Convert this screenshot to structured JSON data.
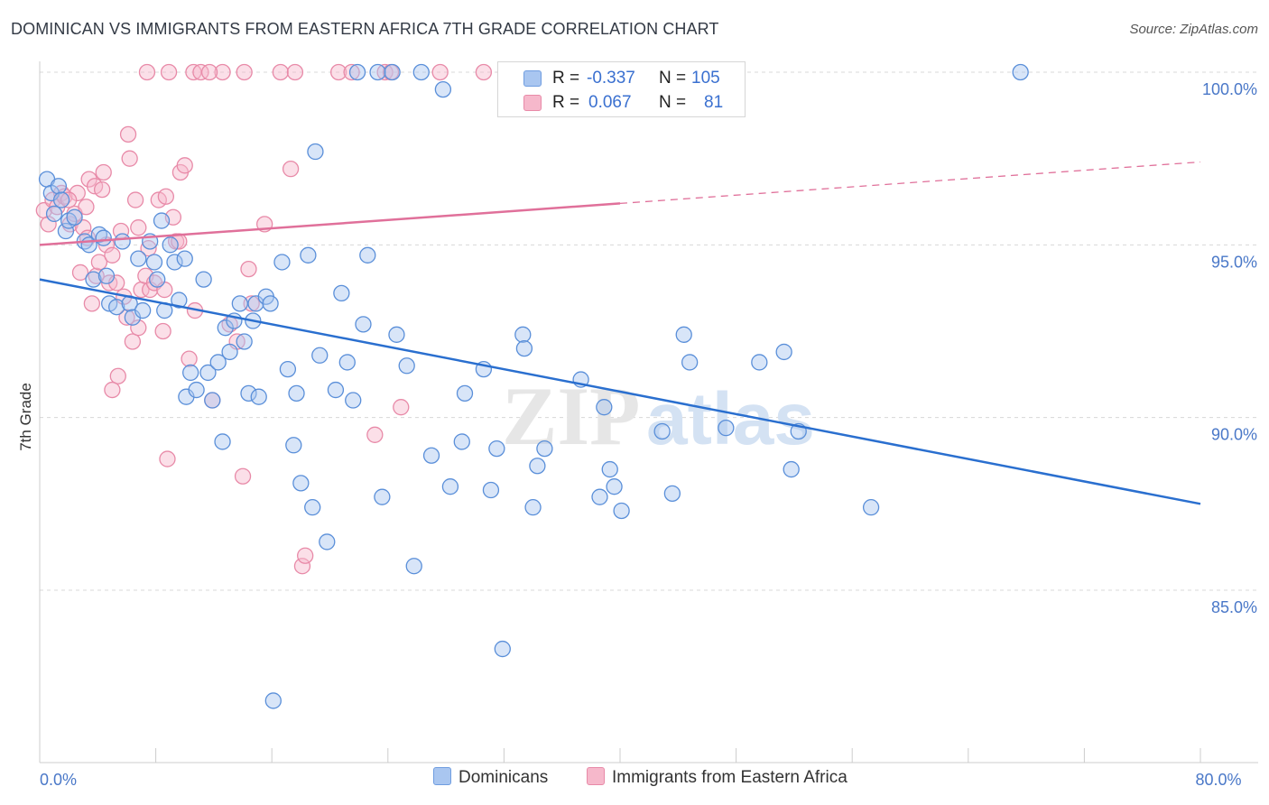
{
  "title": "DOMINICAN VS IMMIGRANTS FROM EASTERN AFRICA 7TH GRADE CORRELATION CHART",
  "source": "Source: ZipAtlas.com",
  "watermark": {
    "zip": "ZIP",
    "atlas": "atlas"
  },
  "legend": {
    "rows": [
      {
        "r_label": "R =",
        "r_value": "-0.337",
        "n_label": "N =",
        "n_value": "105",
        "color": "#a9c6f0",
        "border": "#6f9de0"
      },
      {
        "r_label": "R =",
        "r_value": "0.067",
        "n_label": "N =",
        "n_value": "81",
        "color": "#f6b8cb",
        "border": "#e88aa8"
      }
    ]
  },
  "bottom_legend": {
    "dominicans": "Dominicans",
    "eastern_africa": "Immigrants from Eastern Africa"
  },
  "colors": {
    "blue_fill": "#a9c6f0",
    "blue_stroke": "#5a8fd9",
    "blue_line": "#2a6fcf",
    "pink_fill": "#f6b8cb",
    "pink_stroke": "#e88aa8",
    "pink_line": "#e0709a",
    "grid": "#d8d8d8",
    "tick_text": "#4a78c8"
  },
  "chart_data": {
    "type": "scatter",
    "title": "DOMINICAN VS IMMIGRANTS FROM EASTERN AFRICA 7TH GRADE CORRELATION CHART",
    "xlabel": "",
    "ylabel": "7th Grade",
    "xlim": [
      0,
      80
    ],
    "ylim": [
      80.5,
      100.5
    ],
    "x_ticks": [
      0,
      8,
      16,
      24,
      32,
      40,
      48,
      56,
      64,
      72,
      80
    ],
    "x_tick_labels": {
      "0": "0.0%",
      "80": "80.0%"
    },
    "y_ticks": [
      85,
      90,
      95,
      100
    ],
    "y_tick_labels": [
      "85.0%",
      "90.0%",
      "95.0%",
      "100.0%"
    ],
    "grid": true,
    "series": [
      {
        "name": "Dominicans",
        "trend": {
          "x": [
            0,
            80
          ],
          "y": [
            94.0,
            87.5
          ],
          "dashed_from": null
        },
        "points": [
          [
            0.5,
            96.9
          ],
          [
            0.8,
            96.5
          ],
          [
            1.0,
            95.9
          ],
          [
            1.3,
            96.7
          ],
          [
            1.5,
            96.3
          ],
          [
            1.8,
            95.4
          ],
          [
            2.0,
            95.7
          ],
          [
            2.4,
            95.8
          ],
          [
            3.1,
            95.1
          ],
          [
            3.4,
            95.0
          ],
          [
            3.7,
            94.0
          ],
          [
            4.1,
            95.3
          ],
          [
            4.4,
            95.2
          ],
          [
            4.6,
            94.1
          ],
          [
            4.8,
            93.3
          ],
          [
            5.3,
            93.2
          ],
          [
            5.7,
            95.1
          ],
          [
            6.2,
            93.3
          ],
          [
            6.4,
            92.9
          ],
          [
            6.8,
            94.6
          ],
          [
            7.1,
            93.1
          ],
          [
            7.6,
            95.1
          ],
          [
            7.9,
            94.5
          ],
          [
            8.1,
            94.0
          ],
          [
            8.4,
            95.7
          ],
          [
            8.6,
            93.1
          ],
          [
            9.0,
            95.0
          ],
          [
            9.3,
            94.5
          ],
          [
            9.6,
            93.4
          ],
          [
            10.0,
            94.6
          ],
          [
            10.1,
            90.6
          ],
          [
            10.4,
            91.3
          ],
          [
            10.8,
            90.8
          ],
          [
            11.3,
            94.0
          ],
          [
            11.6,
            91.3
          ],
          [
            11.9,
            90.5
          ],
          [
            12.3,
            91.6
          ],
          [
            12.6,
            89.3
          ],
          [
            12.8,
            92.6
          ],
          [
            13.1,
            91.9
          ],
          [
            13.4,
            92.8
          ],
          [
            13.8,
            93.3
          ],
          [
            14.1,
            92.2
          ],
          [
            14.4,
            90.7
          ],
          [
            14.7,
            92.8
          ],
          [
            14.9,
            93.3
          ],
          [
            15.1,
            90.6
          ],
          [
            15.6,
            93.5
          ],
          [
            15.9,
            93.3
          ],
          [
            16.1,
            81.8
          ],
          [
            16.7,
            94.5
          ],
          [
            17.1,
            91.4
          ],
          [
            17.5,
            89.2
          ],
          [
            17.7,
            90.7
          ],
          [
            18.0,
            88.1
          ],
          [
            18.5,
            94.7
          ],
          [
            18.8,
            87.4
          ],
          [
            19.0,
            97.7
          ],
          [
            19.3,
            91.8
          ],
          [
            19.8,
            86.4
          ],
          [
            20.4,
            90.8
          ],
          [
            20.8,
            93.6
          ],
          [
            21.2,
            91.6
          ],
          [
            21.6,
            90.5
          ],
          [
            21.9,
            100.0
          ],
          [
            22.3,
            92.7
          ],
          [
            22.6,
            94.7
          ],
          [
            23.3,
            100.0
          ],
          [
            23.6,
            87.7
          ],
          [
            24.3,
            100.0
          ],
          [
            24.6,
            92.4
          ],
          [
            25.3,
            91.5
          ],
          [
            25.8,
            85.7
          ],
          [
            26.3,
            100.0
          ],
          [
            27.0,
            88.9
          ],
          [
            27.8,
            99.5
          ],
          [
            28.3,
            88.0
          ],
          [
            29.1,
            89.3
          ],
          [
            29.3,
            90.7
          ],
          [
            30.6,
            91.4
          ],
          [
            31.1,
            87.9
          ],
          [
            31.5,
            89.1
          ],
          [
            32.3,
            100.0
          ],
          [
            33.3,
            92.4
          ],
          [
            33.4,
            92.0
          ],
          [
            34.0,
            87.4
          ],
          [
            34.3,
            88.6
          ],
          [
            34.8,
            89.1
          ],
          [
            35.1,
            100.0
          ],
          [
            37.3,
            91.1
          ],
          [
            38.6,
            87.7
          ],
          [
            38.9,
            90.3
          ],
          [
            39.3,
            88.5
          ],
          [
            39.6,
            88.0
          ],
          [
            40.1,
            87.3
          ],
          [
            42.9,
            89.6
          ],
          [
            43.6,
            87.8
          ],
          [
            44.4,
            92.4
          ],
          [
            44.8,
            91.6
          ],
          [
            47.3,
            89.7
          ],
          [
            49.6,
            91.6
          ],
          [
            51.3,
            91.9
          ],
          [
            51.8,
            88.5
          ],
          [
            52.3,
            89.6
          ],
          [
            57.3,
            87.4
          ],
          [
            67.6,
            100.0
          ],
          [
            31.9,
            83.3
          ]
        ]
      },
      {
        "name": "Immigrants from Eastern Africa",
        "trend": {
          "x": [
            0,
            80
          ],
          "y": [
            95.0,
            97.4
          ],
          "dashed_from": 40
        },
        "points": [
          [
            0.3,
            96.0
          ],
          [
            0.6,
            95.6
          ],
          [
            0.9,
            96.3
          ],
          [
            1.2,
            96.1
          ],
          [
            1.5,
            96.5
          ],
          [
            1.7,
            96.4
          ],
          [
            2.1,
            95.6
          ],
          [
            2.4,
            95.9
          ],
          [
            2.6,
            96.5
          ],
          [
            2.8,
            94.2
          ],
          [
            3.0,
            95.5
          ],
          [
            3.2,
            96.1
          ],
          [
            3.3,
            95.2
          ],
          [
            3.4,
            96.9
          ],
          [
            3.8,
            96.7
          ],
          [
            3.9,
            94.1
          ],
          [
            4.1,
            94.5
          ],
          [
            4.3,
            96.6
          ],
          [
            4.4,
            97.1
          ],
          [
            4.6,
            95.0
          ],
          [
            4.8,
            93.9
          ],
          [
            5.0,
            94.7
          ],
          [
            5.3,
            93.9
          ],
          [
            5.4,
            91.2
          ],
          [
            5.6,
            95.4
          ],
          [
            5.8,
            93.5
          ],
          [
            6.0,
            92.9
          ],
          [
            6.1,
            98.2
          ],
          [
            6.4,
            92.2
          ],
          [
            6.6,
            96.3
          ],
          [
            6.8,
            95.5
          ],
          [
            7.0,
            93.7
          ],
          [
            7.3,
            94.1
          ],
          [
            7.6,
            93.7
          ],
          [
            7.9,
            93.9
          ],
          [
            8.2,
            96.3
          ],
          [
            8.5,
            92.5
          ],
          [
            8.6,
            93.7
          ],
          [
            8.7,
            96.4
          ],
          [
            8.8,
            88.8
          ],
          [
            8.9,
            100.0
          ],
          [
            9.2,
            95.8
          ],
          [
            9.4,
            95.1
          ],
          [
            9.7,
            97.1
          ],
          [
            10.0,
            97.3
          ],
          [
            10.3,
            91.7
          ],
          [
            10.6,
            100.0
          ],
          [
            10.7,
            93.1
          ],
          [
            11.1,
            100.0
          ],
          [
            11.9,
            90.5
          ],
          [
            12.6,
            100.0
          ],
          [
            13.1,
            92.7
          ],
          [
            13.6,
            92.2
          ],
          [
            14.0,
            88.3
          ],
          [
            14.1,
            100.0
          ],
          [
            14.4,
            94.3
          ],
          [
            14.6,
            93.3
          ],
          [
            15.5,
            95.6
          ],
          [
            16.6,
            100.0
          ],
          [
            17.3,
            97.2
          ],
          [
            17.6,
            100.0
          ],
          [
            18.1,
            85.7
          ],
          [
            18.3,
            86.0
          ],
          [
            20.6,
            100.0
          ],
          [
            21.5,
            100.0
          ],
          [
            23.1,
            89.5
          ],
          [
            23.8,
            100.0
          ],
          [
            24.2,
            100.0
          ],
          [
            24.9,
            90.3
          ],
          [
            27.6,
            100.0
          ],
          [
            30.6,
            100.0
          ],
          [
            32.1,
            100.0
          ],
          [
            2.0,
            96.3
          ],
          [
            6.2,
            97.5
          ],
          [
            6.8,
            92.6
          ],
          [
            7.5,
            94.9
          ],
          [
            5.0,
            90.8
          ],
          [
            3.6,
            93.3
          ],
          [
            9.6,
            95.1
          ],
          [
            7.4,
            100.0
          ],
          [
            11.7,
            100.0
          ]
        ]
      }
    ]
  }
}
